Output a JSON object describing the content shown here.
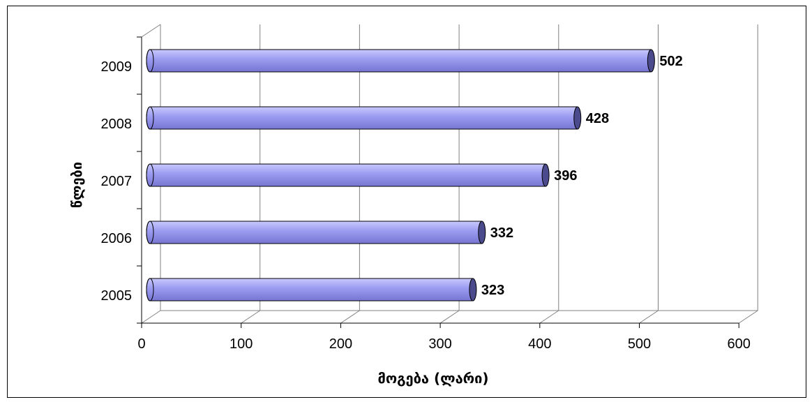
{
  "chart_data": {
    "type": "bar",
    "orientation": "horizontal",
    "style": "3d-cylinder",
    "categories": [
      "2005",
      "2006",
      "2007",
      "2008",
      "2009"
    ],
    "values": [
      323,
      332,
      396,
      428,
      502
    ],
    "xlabel": "მოგება (ლარი)",
    "ylabel": "წლები",
    "xlim": [
      0,
      600
    ],
    "xticks": [
      0,
      100,
      200,
      300,
      400,
      500,
      600
    ],
    "grid": true,
    "legend": "none",
    "colors": {
      "bar": "#9a9af0",
      "bar_end": "#4a4a8c",
      "grid": "#808080",
      "axis": "#000000"
    }
  }
}
